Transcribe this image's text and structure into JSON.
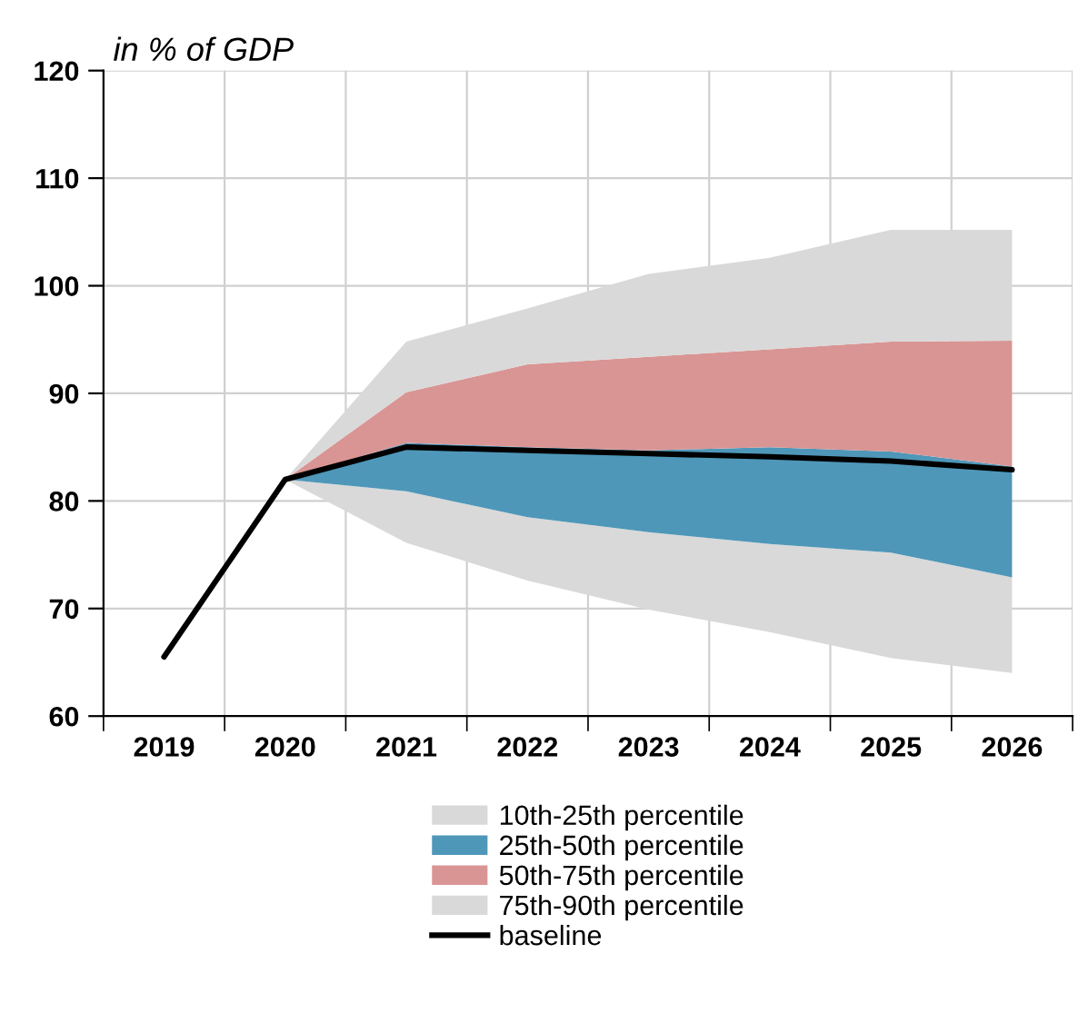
{
  "chart_data": {
    "type": "area",
    "ylabel": "in % of GDP",
    "categories": [
      "2019",
      "2020",
      "2021",
      "2022",
      "2023",
      "2024",
      "2025",
      "2026"
    ],
    "series": [
      {
        "name": "10th-25th percentile",
        "type": "area",
        "color": "#d9d9d9",
        "lower": [
          null,
          82,
          76.1,
          72.6,
          69.9,
          67.8,
          65.4,
          64.0
        ],
        "upper": [
          null,
          82,
          80.9,
          78.5,
          77.1,
          76.0,
          75.2,
          72.9
        ],
        "values": [
          null,
          null,
          null,
          null,
          null,
          null,
          null,
          null
        ]
      },
      {
        "name": "25th-50th percentile",
        "type": "area",
        "color": "#4e97b9",
        "lower": [
          null,
          82,
          80.9,
          78.5,
          77.1,
          76.0,
          75.2,
          72.9
        ],
        "upper": [
          null,
          82,
          85.4,
          85.0,
          84.7,
          85.0,
          84.6,
          83.2
        ],
        "values": [
          null,
          null,
          null,
          null,
          null,
          null,
          null,
          null
        ]
      },
      {
        "name": "50th-75th percentile",
        "type": "area",
        "color": "#d99594",
        "lower": [
          null,
          82,
          85.4,
          85.0,
          84.7,
          85.0,
          84.6,
          83.2
        ],
        "upper": [
          null,
          82,
          90.1,
          92.7,
          93.4,
          94.1,
          94.8,
          94.9
        ],
        "values": [
          null,
          null,
          null,
          null,
          null,
          null,
          null,
          null
        ]
      },
      {
        "name": "75th-90th percentile",
        "type": "area",
        "color": "#d9d9d9",
        "lower": [
          null,
          82,
          90.1,
          92.7,
          93.4,
          94.1,
          94.8,
          94.9
        ],
        "upper": [
          null,
          82,
          94.8,
          97.9,
          101.1,
          102.6,
          105.2,
          105.2
        ],
        "values": [
          null,
          null,
          null,
          null,
          null,
          null,
          null,
          null
        ]
      },
      {
        "name": "baseline",
        "type": "line",
        "color": "#000000",
        "values": [
          65.5,
          82,
          85.0,
          84.7,
          84.4,
          84.1,
          83.7,
          82.9
        ]
      }
    ],
    "ylim": [
      60,
      120
    ],
    "yticks": [
      60,
      70,
      80,
      90,
      100,
      110,
      120
    ],
    "grid": true,
    "legend": "bottom",
    "line_style": "solid",
    "marker": "none"
  }
}
